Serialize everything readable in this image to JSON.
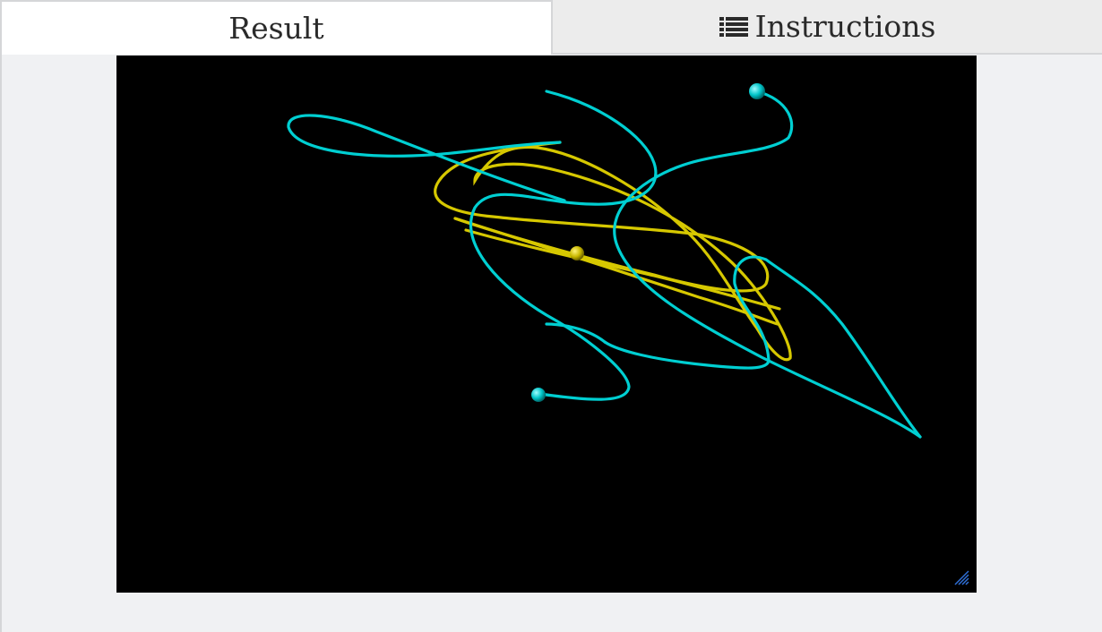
{
  "tabs": {
    "result_label": "Result",
    "instructions_label": "Instructions",
    "instructions_icon": "list-icon"
  },
  "scene": {
    "background": "#000000",
    "orbit_colors": {
      "primary": "#00cfd2",
      "secondary": "#d6c800"
    },
    "bodies": [
      "cyan-sphere",
      "cyan-sphere",
      "yellow-sphere"
    ]
  },
  "resize_icon": "resize-grip-icon"
}
